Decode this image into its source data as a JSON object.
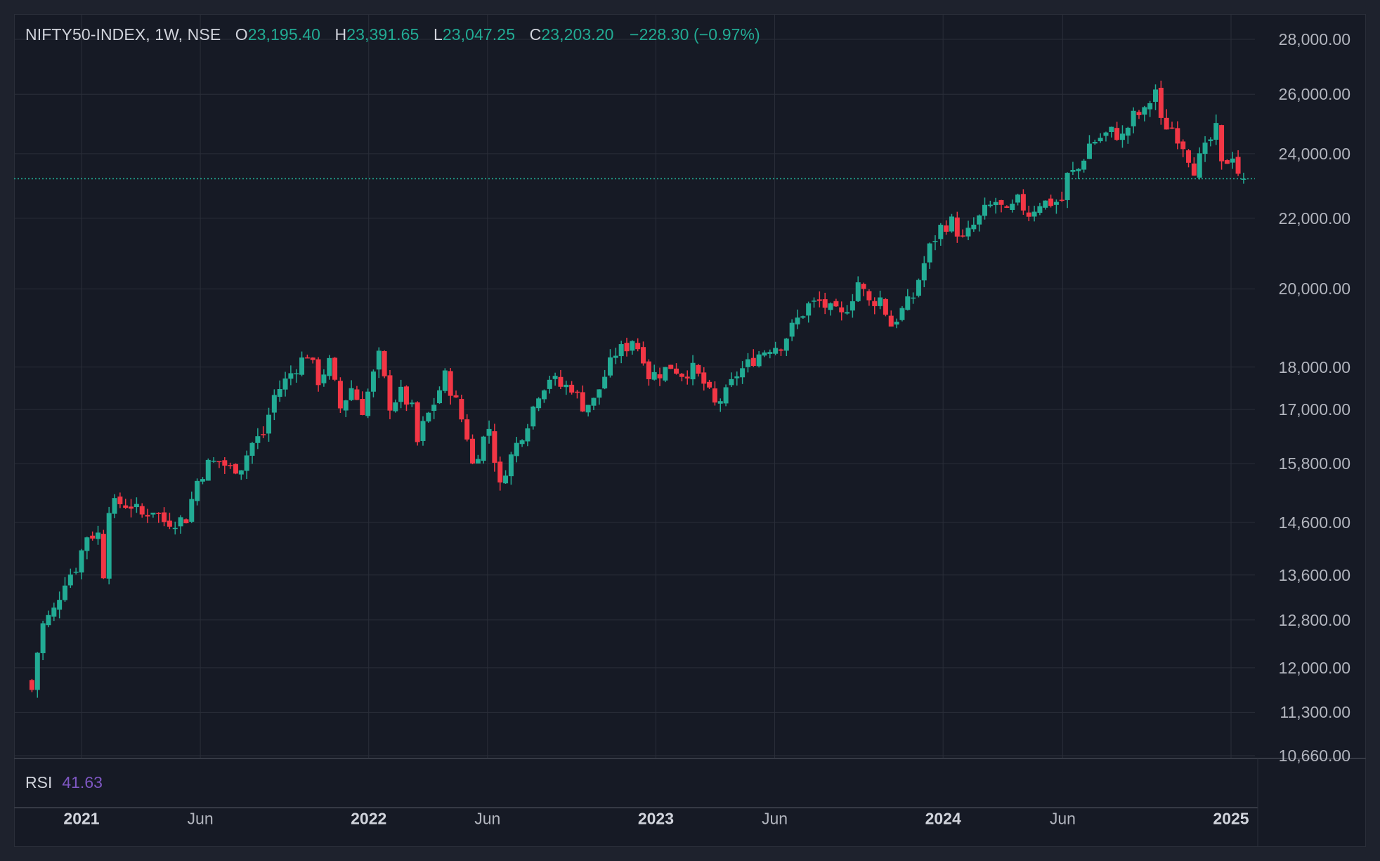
{
  "legend": {
    "symbol": "NIFTY50-INDEX, 1W, NSE",
    "open_label": "O",
    "open": "23,195.40",
    "high_label": "H",
    "high": "23,391.65",
    "low_label": "L",
    "low": "23,047.25",
    "close_label": "C",
    "close": "23,203.20",
    "change": "−228.30 (−0.97%)"
  },
  "rsi": {
    "label": "RSI",
    "value": "41.63"
  },
  "colors": {
    "background": "#161a25",
    "grid": "#2a2e39",
    "up": "#22ab94",
    "down": "#f23645",
    "rsi": "#7e57c2",
    "text": "#b2b5be"
  },
  "chart_data": {
    "type": "candlestick",
    "interval": "1W",
    "y_scale": "log",
    "ylim": [
      10660,
      28000
    ],
    "y_ticks": [
      "28,000.00",
      "26,000.00",
      "24,000.00",
      "22,000.00",
      "20,000.00",
      "18,000.00",
      "17,000.00",
      "15,800.00",
      "14,600.00",
      "13,600.00",
      "12,800.00",
      "12,000.00",
      "11,300.00",
      "10,660.00"
    ],
    "x_range": [
      "2020-10-26",
      "2025-01-17"
    ],
    "x_ticks": [
      {
        "date": "2021-01-01",
        "label": "2021",
        "year": true
      },
      {
        "date": "2021-06-01",
        "label": "Jun",
        "year": false
      },
      {
        "date": "2022-01-01",
        "label": "2022",
        "year": true
      },
      {
        "date": "2022-06-01",
        "label": "Jun",
        "year": false
      },
      {
        "date": "2023-01-01",
        "label": "2023",
        "year": true
      },
      {
        "date": "2023-06-01",
        "label": "Jun",
        "year": false
      },
      {
        "date": "2024-01-01",
        "label": "2024",
        "year": true
      },
      {
        "date": "2024-06-01",
        "label": "Jun",
        "year": false
      },
      {
        "date": "2025-01-01",
        "label": "2025",
        "year": true
      }
    ],
    "last_price": 23203.2,
    "close_path": [
      [
        "2020-10-30",
        11650
      ],
      [
        "2020-11-06",
        12260
      ],
      [
        "2020-11-13",
        12720
      ],
      [
        "2020-11-27",
        12970
      ],
      [
        "2020-12-11",
        13510
      ],
      [
        "2020-12-25",
        13750
      ],
      [
        "2021-01-08",
        14350
      ],
      [
        "2021-01-22",
        14370
      ],
      [
        "2021-01-29",
        13640
      ],
      [
        "2021-02-05",
        14920
      ],
      [
        "2021-02-19",
        14980
      ],
      [
        "2021-03-05",
        14940
      ],
      [
        "2021-03-19",
        14740
      ],
      [
        "2021-04-02",
        14860
      ],
      [
        "2021-04-16",
        14620
      ],
      [
        "2021-04-30",
        14630
      ],
      [
        "2021-05-14",
        14680
      ],
      [
        "2021-05-28",
        15440
      ],
      [
        "2021-06-11",
        15790
      ],
      [
        "2021-06-25",
        15860
      ],
      [
        "2021-07-09",
        15690
      ],
      [
        "2021-07-23",
        15760
      ],
      [
        "2021-08-06",
        16240
      ],
      [
        "2021-08-20",
        16450
      ],
      [
        "2021-09-03",
        17320
      ],
      [
        "2021-09-24",
        17850
      ],
      [
        "2021-10-15",
        18340
      ],
      [
        "2021-10-29",
        17680
      ],
      [
        "2021-11-12",
        18100
      ],
      [
        "2021-11-26",
        17030
      ],
      [
        "2021-12-10",
        17510
      ],
      [
        "2021-12-24",
        17000
      ],
      [
        "2022-01-07",
        17810
      ],
      [
        "2022-01-14",
        18260
      ],
      [
        "2022-01-28",
        17100
      ],
      [
        "2022-02-11",
        17380
      ],
      [
        "2022-02-25",
        17000
      ],
      [
        "2022-03-04",
        16250
      ],
      [
        "2022-03-11",
        16630
      ],
      [
        "2022-03-25",
        17150
      ],
      [
        "2022-04-08",
        17780
      ],
      [
        "2022-04-22",
        17170
      ],
      [
        "2022-05-06",
        16410
      ],
      [
        "2022-05-13",
        15780
      ],
      [
        "2022-05-27",
        16350
      ],
      [
        "2022-06-03",
        16580
      ],
      [
        "2022-06-17",
        15300
      ],
      [
        "2022-06-24",
        15700
      ],
      [
        "2022-07-08",
        16220
      ],
      [
        "2022-07-22",
        16720
      ],
      [
        "2022-08-05",
        17400
      ],
      [
        "2022-08-19",
        17760
      ],
      [
        "2022-09-02",
        17540
      ],
      [
        "2022-09-16",
        17530
      ],
      [
        "2022-09-30",
        17090
      ],
      [
        "2022-10-14",
        17190
      ],
      [
        "2022-10-28",
        17790
      ],
      [
        "2022-11-11",
        18350
      ],
      [
        "2022-11-25",
        18510
      ],
      [
        "2022-12-02",
        18700
      ],
      [
        "2022-12-16",
        18270
      ],
      [
        "2022-12-23",
        17800
      ],
      [
        "2023-01-06",
        17860
      ],
      [
        "2023-01-20",
        18030
      ],
      [
        "2023-02-03",
        17850
      ],
      [
        "2023-02-17",
        17940
      ],
      [
        "2023-03-03",
        17600
      ],
      [
        "2023-03-17",
        17100
      ],
      [
        "2023-03-31",
        17360
      ],
      [
        "2023-04-14",
        17830
      ],
      [
        "2023-04-28",
        18070
      ],
      [
        "2023-05-12",
        18320
      ],
      [
        "2023-05-26",
        18500
      ],
      [
        "2023-06-09",
        18560
      ],
      [
        "2023-06-30",
        19190
      ],
      [
        "2023-07-14",
        19560
      ],
      [
        "2023-07-28",
        19650
      ],
      [
        "2023-08-11",
        19430
      ],
      [
        "2023-08-25",
        19270
      ],
      [
        "2023-09-08",
        19820
      ],
      [
        "2023-09-15",
        20190
      ],
      [
        "2023-09-29",
        19630
      ],
      [
        "2023-10-13",
        19750
      ],
      [
        "2023-10-27",
        19050
      ],
      [
        "2023-11-10",
        19430
      ],
      [
        "2023-11-24",
        19800
      ],
      [
        "2023-12-01",
        20270
      ],
      [
        "2023-12-15",
        21140
      ],
      [
        "2023-12-29",
        21730
      ],
      [
        "2024-01-12",
        21890
      ],
      [
        "2024-01-26",
        21350
      ],
      [
        "2024-02-09",
        21780
      ],
      [
        "2024-02-23",
        22210
      ],
      [
        "2024-03-08",
        22490
      ],
      [
        "2024-03-22",
        22100
      ],
      [
        "2024-04-05",
        22510
      ],
      [
        "2024-04-19",
        22140
      ],
      [
        "2024-05-03",
        22480
      ],
      [
        "2024-05-17",
        22470
      ],
      [
        "2024-05-31",
        22530
      ],
      [
        "2024-06-07",
        23290
      ],
      [
        "2024-06-21",
        23500
      ],
      [
        "2024-07-05",
        24320
      ],
      [
        "2024-07-19",
        24530
      ],
      [
        "2024-08-02",
        24720
      ],
      [
        "2024-08-16",
        24540
      ],
      [
        "2024-08-30",
        25240
      ],
      [
        "2024-09-13",
        25360
      ],
      [
        "2024-09-27",
        26180
      ],
      [
        "2024-10-04",
        25010
      ],
      [
        "2024-10-18",
        24850
      ],
      [
        "2024-11-01",
        24300
      ],
      [
        "2024-11-15",
        23530
      ],
      [
        "2024-11-29",
        24130
      ],
      [
        "2024-12-13",
        24770
      ],
      [
        "2024-12-20",
        23590
      ],
      [
        "2025-01-03",
        24000
      ],
      [
        "2025-01-10",
        23430
      ],
      [
        "2025-01-17",
        23203.2
      ]
    ]
  }
}
